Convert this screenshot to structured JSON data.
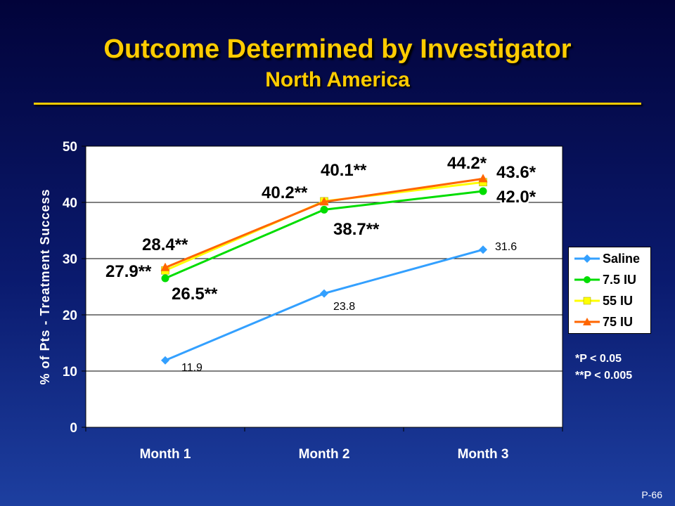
{
  "slide": {
    "title": "Outcome Determined by Investigator",
    "subtitle": "North America",
    "page_number": "P-66"
  },
  "colors": {
    "title": "#ffcc00",
    "saline": "#33a0ff",
    "iu75": "#00dd00",
    "iu55": "#ffff00",
    "iu75b": "#ff6600"
  },
  "footnotes": {
    "p1": "*P < 0.05",
    "p2": "**P < 0.005"
  },
  "chart_data": {
    "type": "line",
    "title": "",
    "xlabel": "",
    "ylabel": "% of Pts - Treatment Success",
    "categories": [
      "Month 1",
      "Month 2",
      "Month 3"
    ],
    "ylim": [
      0,
      50
    ],
    "yticks": [
      0,
      10,
      20,
      30,
      40,
      50
    ],
    "grid": true,
    "legend_position": "right",
    "series": [
      {
        "name": "Saline",
        "values": [
          11.9,
          23.8,
          31.6
        ],
        "labels": [
          "11.9",
          "23.8",
          "31.6"
        ],
        "color": "#33a0ff",
        "marker": "diamond"
      },
      {
        "name": "7.5 IU",
        "values": [
          26.5,
          38.7,
          42.0
        ],
        "labels": [
          "26.5**",
          "38.7**",
          "42.0*"
        ],
        "color": "#00dd00",
        "marker": "circle"
      },
      {
        "name": "55 IU",
        "values": [
          27.9,
          40.2,
          43.6
        ],
        "labels": [
          "27.9**",
          "40.2**",
          "43.6*"
        ],
        "color": "#ffff00",
        "marker": "square"
      },
      {
        "name": "75 IU",
        "values": [
          28.4,
          40.1,
          44.2
        ],
        "labels": [
          "28.4**",
          "40.1**",
          "44.2*"
        ],
        "color": "#ff6600",
        "marker": "triangle"
      }
    ]
  }
}
